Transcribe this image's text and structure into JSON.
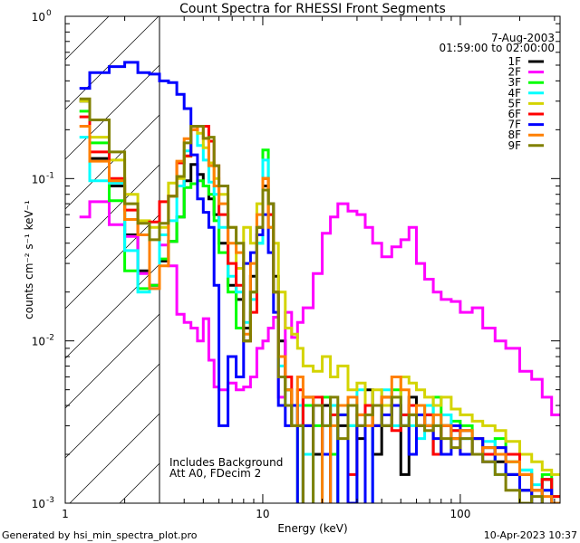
{
  "chart_data": {
    "type": "line",
    "title": "Count Spectra for RHESSI Front Segments",
    "xlabel": "Energy (keV)",
    "ylabel": "counts cm⁻² s⁻¹ keV⁻¹",
    "xscale": "log",
    "yscale": "log",
    "xlim": [
      1,
      320
    ],
    "ylim": [
      0.001,
      1
    ],
    "x_tick_labels": [
      {
        "value": 1,
        "label": "1"
      },
      {
        "value": 10,
        "label": "10"
      },
      {
        "value": 100,
        "label": "100"
      }
    ],
    "y_tick_labels": [
      {
        "value": 1,
        "base": "10",
        "exp": "0"
      },
      {
        "value": 0.1,
        "base": "10",
        "exp": "-1"
      },
      {
        "value": 0.01,
        "base": "10",
        "exp": "-2"
      },
      {
        "value": 0.001,
        "base": "10",
        "exp": "-3"
      }
    ],
    "legend": {
      "placement": "top-right",
      "date": "7-Aug-2003",
      "time_range": "01:59:00 to 02:00:00"
    },
    "annotations": [
      "Includes Background",
      "Att A0, FDecim 2"
    ],
    "hatched_region_keV": [
      1,
      3
    ],
    "bin_edges_keV": [
      1.18,
      1.33,
      1.67,
      2.0,
      2.33,
      2.67,
      3.0,
      3.33,
      3.67,
      4.0,
      4.33,
      4.67,
      5.0,
      5.33,
      5.67,
      6.0,
      6.67,
      7.33,
      8.0,
      8.67,
      9.33,
      10.0,
      10.67,
      11.33,
      12.0,
      13,
      14,
      15,
      16,
      18,
      20,
      22,
      24,
      27,
      30,
      33,
      36,
      40,
      45,
      50,
      55,
      60,
      66,
      73,
      80,
      90,
      100,
      115,
      130,
      150,
      170,
      200,
      230,
      260,
      290,
      320
    ],
    "series": [
      {
        "name": "1F",
        "color": "#000000",
        "values": [
          0.3,
          0.133,
          0.09,
          0.045,
          0.027,
          0.022,
          0.031,
          0.041,
          0.058,
          0.097,
          0.122,
          0.106,
          0.09,
          0.075,
          0.06,
          0.04,
          0.022,
          0.018,
          0.012,
          0.025,
          0.05,
          0.09,
          0.07,
          0.025,
          0.01,
          0.005,
          0.004,
          0.003,
          0.0045,
          0.002,
          0.004,
          0.0008,
          0.003,
          0.004,
          0.0025,
          0.005,
          0.002,
          0.003,
          0.004,
          0.0015,
          0.0045,
          0.003,
          0.0035,
          0.002,
          0.003,
          0.0025,
          0.0028,
          0.002,
          0.0022,
          0.0018,
          0.0015,
          0.0012,
          0.0009,
          0.0014,
          0.001
        ]
      },
      {
        "name": "2F",
        "color": "#ff00ff",
        "values": [
          0.058,
          0.072,
          0.052,
          0.044,
          0.026,
          0.022,
          0.039,
          0.029,
          0.0146,
          0.013,
          0.012,
          0.01,
          0.0137,
          0.0076,
          0.0052,
          0.005,
          0.0055,
          0.005,
          0.0052,
          0.006,
          0.009,
          0.01,
          0.012,
          0.014,
          0.0045,
          0.015,
          0.0105,
          0.013,
          0.016,
          0.026,
          0.046,
          0.058,
          0.07,
          0.063,
          0.06,
          0.05,
          0.04,
          0.033,
          0.038,
          0.042,
          0.05,
          0.03,
          0.024,
          0.02,
          0.018,
          0.0175,
          0.015,
          0.016,
          0.012,
          0.01,
          0.009,
          0.0065,
          0.0058,
          0.0045,
          0.0035
        ]
      },
      {
        "name": "3F",
        "color": "#00ff00",
        "values": [
          0.26,
          0.166,
          0.073,
          0.027,
          0.021,
          0.022,
          0.032,
          0.041,
          0.058,
          0.088,
          0.093,
          0.097,
          0.09,
          0.08,
          0.055,
          0.035,
          0.02,
          0.012,
          0.01,
          0.02,
          0.04,
          0.15,
          0.05,
          0.02,
          0.008,
          0.005,
          0.003,
          0.0008,
          0.004,
          0.003,
          0.0045,
          0.002,
          0.0035,
          0.003,
          0.0009,
          0.004,
          0.003,
          0.0045,
          0.005,
          0.003,
          0.0035,
          0.004,
          0.003,
          0.0045,
          0.003,
          0.0032,
          0.003,
          0.0025,
          0.002,
          0.0025,
          0.0018,
          0.0016,
          0.0012,
          0.0015,
          0.0011
        ]
      },
      {
        "name": "4F",
        "color": "#00ffff",
        "values": [
          0.18,
          0.097,
          0.094,
          0.036,
          0.02,
          0.021,
          0.045,
          0.055,
          0.09,
          0.148,
          0.2,
          0.16,
          0.13,
          0.095,
          0.08,
          0.05,
          0.025,
          0.02,
          0.013,
          0.018,
          0.04,
          0.13,
          0.06,
          0.02,
          0.007,
          0.004,
          0.003,
          0.004,
          0.002,
          0.0008,
          0.003,
          0.004,
          0.0008,
          0.003,
          0.005,
          0.0009,
          0.004,
          0.005,
          0.003,
          0.0035,
          0.003,
          0.0025,
          0.004,
          0.003,
          0.0035,
          0.0028,
          0.0025,
          0.002,
          0.0024,
          0.0015,
          0.002,
          0.0016,
          0.0013,
          0.0012,
          0.001
        ]
      },
      {
        "name": "5F",
        "color": "#d4d400",
        "values": [
          0.3,
          0.18,
          0.13,
          0.08,
          0.055,
          0.05,
          0.05,
          0.094,
          0.1,
          0.137,
          0.2,
          0.19,
          0.155,
          0.125,
          0.1,
          0.08,
          0.05,
          0.028,
          0.05,
          0.04,
          0.07,
          0.1,
          0.06,
          0.04,
          0.02,
          0.012,
          0.011,
          0.009,
          0.007,
          0.0065,
          0.008,
          0.006,
          0.007,
          0.005,
          0.0055,
          0.004,
          0.005,
          0.004,
          0.0045,
          0.006,
          0.0055,
          0.005,
          0.0045,
          0.004,
          0.0045,
          0.0038,
          0.0035,
          0.0032,
          0.003,
          0.0028,
          0.0024,
          0.002,
          0.0018,
          0.0016,
          0.0015
        ]
      },
      {
        "name": "6F",
        "color": "#ff0000",
        "values": [
          0.24,
          0.146,
          0.1,
          0.064,
          0.045,
          0.054,
          0.072,
          0.078,
          0.125,
          0.138,
          0.2,
          0.21,
          0.21,
          0.17,
          0.12,
          0.06,
          0.03,
          0.022,
          0.01,
          0.015,
          0.045,
          0.1,
          0.06,
          0.02,
          0.008,
          0.006,
          0.004,
          0.005,
          0.003,
          0.0045,
          0.002,
          0.0035,
          0.004,
          0.0015,
          0.0035,
          0.004,
          0.003,
          0.0045,
          0.0028,
          0.0035,
          0.004,
          0.003,
          0.0035,
          0.002,
          0.003,
          0.0028,
          0.002,
          0.0025,
          0.002,
          0.0022,
          0.002,
          0.0015,
          0.0012,
          0.0014,
          0.0011
        ]
      },
      {
        "name": "7F",
        "color": "#0000ff",
        "values": [
          0.36,
          0.45,
          0.49,
          0.52,
          0.45,
          0.44,
          0.4,
          0.39,
          0.33,
          0.27,
          0.14,
          0.075,
          0.062,
          0.05,
          0.022,
          0.003,
          0.008,
          0.006,
          0.03,
          0.035,
          0.045,
          0.06,
          0.035,
          0.015,
          0.004,
          0.003,
          0.004,
          0.0009,
          0.003,
          0.004,
          0.002,
          0.0008,
          0.0035,
          0.001,
          0.003,
          0.0009,
          0.003,
          0.0035,
          0.004,
          0.003,
          0.002,
          0.0035,
          0.003,
          0.0025,
          0.002,
          0.003,
          0.002,
          0.0025,
          0.0018,
          0.0022,
          0.0015,
          0.0012,
          0.0009,
          0.0012,
          0.001
        ]
      },
      {
        "name": "8F",
        "color": "#ff8000",
        "values": [
          0.21,
          0.128,
          0.097,
          0.056,
          0.045,
          0.021,
          0.029,
          0.078,
          0.128,
          0.176,
          0.2,
          0.21,
          0.177,
          0.12,
          0.09,
          0.07,
          0.04,
          0.035,
          0.011,
          0.03,
          0.06,
          0.1,
          0.05,
          0.02,
          0.008,
          0.005,
          0.003,
          0.006,
          0.0045,
          0.004,
          0.0009,
          0.003,
          0.004,
          0.0045,
          0.0035,
          0.003,
          0.004,
          0.0045,
          0.006,
          0.005,
          0.0035,
          0.004,
          0.003,
          0.0035,
          0.003,
          0.0025,
          0.0028,
          0.002,
          0.0022,
          0.002,
          0.0018,
          0.0015,
          0.0012,
          0.0011,
          0.001
        ]
      },
      {
        "name": "9F",
        "color": "#808000",
        "values": [
          0.31,
          0.23,
          0.146,
          0.07,
          0.053,
          0.042,
          0.053,
          0.078,
          0.103,
          0.166,
          0.21,
          0.21,
          0.177,
          0.18,
          0.12,
          0.09,
          0.05,
          0.04,
          0.01,
          0.02,
          0.05,
          0.085,
          0.07,
          0.02,
          0.006,
          0.004,
          0.003,
          0.003,
          0.0009,
          0.004,
          0.003,
          0.0045,
          0.0025,
          0.004,
          0.003,
          0.0035,
          0.004,
          0.003,
          0.0045,
          0.003,
          0.0035,
          0.003,
          0.0028,
          0.003,
          0.0025,
          0.0022,
          0.0025,
          0.002,
          0.0018,
          0.0015,
          0.0012,
          0.001,
          0.0011,
          0.0009,
          0.0009
        ]
      }
    ]
  },
  "footer": {
    "generator": "Generated by hsi_min_spectra_plot.pro",
    "timestamp": "10-Apr-2023 10:37"
  }
}
